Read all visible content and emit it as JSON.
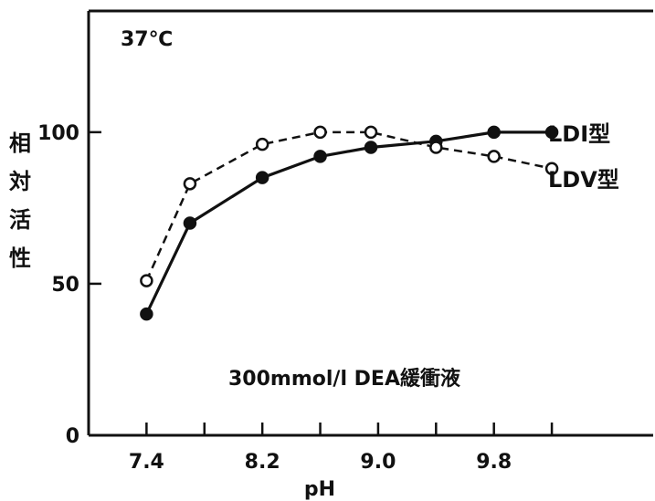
{
  "chart_data": {
    "type": "line",
    "title": "",
    "annotation_top": "37℃",
    "annotation_buffer": "300mmol/l DEA緩衝液",
    "xlabel": "pH",
    "ylabel": "相対活性",
    "x_ticks": [
      "7.4",
      "8.2",
      "9.0",
      "9.8"
    ],
    "y_ticks": [
      "0",
      "50",
      "100"
    ],
    "xlim": [
      7.0,
      10.9
    ],
    "ylim": [
      0,
      140
    ],
    "grid": false,
    "x": [
      7.4,
      7.7,
      8.2,
      8.6,
      9.0,
      9.4,
      9.8,
      10.2
    ],
    "series": [
      {
        "name": "LDⅠ型",
        "style": "solid",
        "marker": "filled",
        "x": [
          7.4,
          7.7,
          8.2,
          8.6,
          8.95,
          9.4,
          9.8,
          10.2
        ],
        "values": [
          40,
          70,
          85,
          92,
          95,
          97,
          100,
          100
        ],
        "color": "#111111"
      },
      {
        "name": "LDⅤ型",
        "style": "dashed",
        "marker": "open",
        "x": [
          7.4,
          7.7,
          8.2,
          8.6,
          8.95,
          9.4,
          9.8,
          10.2
        ],
        "values": [
          51,
          83,
          96,
          100,
          100,
          95,
          92,
          88
        ],
        "color": "#111111"
      }
    ]
  }
}
